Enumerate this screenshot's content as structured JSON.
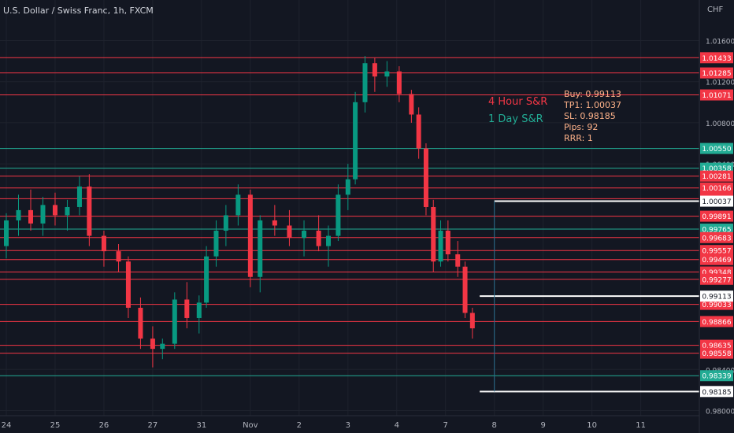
{
  "chart_data": {
    "type": "candlestick",
    "title": "U.S. Dollar / Swiss Franc, 1h, FXCM",
    "currency": "CHF",
    "ylim": [
      0.9795,
      1.0178
    ],
    "y_ticks": [
      1.016,
      1.012,
      1.008,
      1.004,
      0.984,
      0.98
    ],
    "x_ticks": [
      {
        "label": "24",
        "x": 0
      },
      {
        "label": "25",
        "x": 1
      },
      {
        "label": "26",
        "x": 2
      },
      {
        "label": "27",
        "x": 3
      },
      {
        "label": "31",
        "x": 4
      },
      {
        "label": "Nov",
        "x": 5
      },
      {
        "label": "2",
        "x": 6
      },
      {
        "label": "3",
        "x": 7
      },
      {
        "label": "4",
        "x": 8
      },
      {
        "label": "7",
        "x": 9
      },
      {
        "label": "8",
        "x": 10
      },
      {
        "label": "9",
        "x": 11
      },
      {
        "label": "10",
        "x": 12
      },
      {
        "label": "11",
        "x": 13
      }
    ],
    "xlim": [
      0,
      14.2
    ],
    "candles": [
      {
        "x": 0.0,
        "o": 0.996,
        "h": 0.9992,
        "l": 0.9948,
        "c": 0.9985
      },
      {
        "x": 0.25,
        "o": 0.9985,
        "h": 1.001,
        "l": 0.997,
        "c": 0.9995
      },
      {
        "x": 0.5,
        "o": 0.9995,
        "h": 1.0015,
        "l": 0.9975,
        "c": 0.9982
      },
      {
        "x": 0.75,
        "o": 0.9982,
        "h": 1.0008,
        "l": 0.997,
        "c": 1.0
      },
      {
        "x": 1.0,
        "o": 1.0,
        "h": 1.0012,
        "l": 0.998,
        "c": 0.999
      },
      {
        "x": 1.25,
        "o": 0.999,
        "h": 1.0005,
        "l": 0.9975,
        "c": 0.9998
      },
      {
        "x": 1.5,
        "o": 0.9998,
        "h": 1.0028,
        "l": 0.999,
        "c": 1.0018
      },
      {
        "x": 1.7,
        "o": 1.0018,
        "h": 1.003,
        "l": 0.996,
        "c": 0.997
      },
      {
        "x": 2.0,
        "o": 0.997,
        "h": 0.9975,
        "l": 0.994,
        "c": 0.9955
      },
      {
        "x": 2.3,
        "o": 0.9955,
        "h": 0.9962,
        "l": 0.9935,
        "c": 0.9945
      },
      {
        "x": 2.5,
        "o": 0.9945,
        "h": 0.995,
        "l": 0.989,
        "c": 0.99
      },
      {
        "x": 2.75,
        "o": 0.99,
        "h": 0.991,
        "l": 0.986,
        "c": 0.987
      },
      {
        "x": 3.0,
        "o": 0.987,
        "h": 0.9882,
        "l": 0.9842,
        "c": 0.986
      },
      {
        "x": 3.2,
        "o": 0.986,
        "h": 0.987,
        "l": 0.985,
        "c": 0.9865
      },
      {
        "x": 3.45,
        "o": 0.9865,
        "h": 0.9915,
        "l": 0.986,
        "c": 0.9908
      },
      {
        "x": 3.7,
        "o": 0.9908,
        "h": 0.9925,
        "l": 0.988,
        "c": 0.989
      },
      {
        "x": 3.95,
        "o": 0.989,
        "h": 0.9912,
        "l": 0.9875,
        "c": 0.9905
      },
      {
        "x": 4.1,
        "o": 0.9905,
        "h": 0.996,
        "l": 0.99,
        "c": 0.995
      },
      {
        "x": 4.3,
        "o": 0.995,
        "h": 0.9985,
        "l": 0.994,
        "c": 0.9975
      },
      {
        "x": 4.5,
        "o": 0.9975,
        "h": 1.0,
        "l": 0.996,
        "c": 0.999
      },
      {
        "x": 4.75,
        "o": 0.999,
        "h": 1.002,
        "l": 0.998,
        "c": 1.001
      },
      {
        "x": 5.0,
        "o": 1.001,
        "h": 1.0015,
        "l": 0.992,
        "c": 0.993
      },
      {
        "x": 5.2,
        "o": 0.993,
        "h": 0.999,
        "l": 0.9915,
        "c": 0.9985
      },
      {
        "x": 5.5,
        "o": 0.9985,
        "h": 1.0,
        "l": 0.997,
        "c": 0.998
      },
      {
        "x": 5.8,
        "o": 0.998,
        "h": 0.9995,
        "l": 0.996,
        "c": 0.9968
      },
      {
        "x": 6.1,
        "o": 0.9968,
        "h": 0.9985,
        "l": 0.995,
        "c": 0.9975
      },
      {
        "x": 6.4,
        "o": 0.9975,
        "h": 0.999,
        "l": 0.9955,
        "c": 0.996
      },
      {
        "x": 6.6,
        "o": 0.996,
        "h": 0.998,
        "l": 0.994,
        "c": 0.997
      },
      {
        "x": 6.8,
        "o": 0.997,
        "h": 1.002,
        "l": 0.9965,
        "c": 1.001
      },
      {
        "x": 7.0,
        "o": 1.001,
        "h": 1.004,
        "l": 0.9995,
        "c": 1.0025
      },
      {
        "x": 7.15,
        "o": 1.0025,
        "h": 1.011,
        "l": 1.002,
        "c": 1.01
      },
      {
        "x": 7.35,
        "o": 1.01,
        "h": 1.0145,
        "l": 1.009,
        "c": 1.0138
      },
      {
        "x": 7.55,
        "o": 1.0138,
        "h": 1.0143,
        "l": 1.011,
        "c": 1.0125
      },
      {
        "x": 7.8,
        "o": 1.0125,
        "h": 1.014,
        "l": 1.0115,
        "c": 1.013
      },
      {
        "x": 8.05,
        "o": 1.013,
        "h": 1.0135,
        "l": 1.01,
        "c": 1.0108
      },
      {
        "x": 8.3,
        "o": 1.0108,
        "h": 1.0112,
        "l": 1.008,
        "c": 1.0088
      },
      {
        "x": 8.45,
        "o": 1.0088,
        "h": 1.0095,
        "l": 1.0045,
        "c": 1.0055
      },
      {
        "x": 8.6,
        "o": 1.0055,
        "h": 1.006,
        "l": 0.999,
        "c": 0.9998
      },
      {
        "x": 8.75,
        "o": 0.9998,
        "h": 1.0005,
        "l": 0.9935,
        "c": 0.9945
      },
      {
        "x": 8.9,
        "o": 0.9945,
        "h": 0.9985,
        "l": 0.994,
        "c": 0.9975
      },
      {
        "x": 9.05,
        "o": 0.9975,
        "h": 0.9985,
        "l": 0.9945,
        "c": 0.9952
      },
      {
        "x": 9.25,
        "o": 0.9952,
        "h": 0.9965,
        "l": 0.993,
        "c": 0.994
      },
      {
        "x": 9.4,
        "o": 0.994,
        "h": 0.9945,
        "l": 0.989,
        "c": 0.9895
      },
      {
        "x": 9.55,
        "o": 0.9895,
        "h": 0.99,
        "l": 0.987,
        "c": 0.988
      }
    ],
    "horizontal_levels": [
      {
        "value": 1.01433,
        "label": "1.01433",
        "color": "#f23645"
      },
      {
        "value": 1.01285,
        "label": "1.01285",
        "color": "#f23645"
      },
      {
        "value": 1.01071,
        "label": "1.01071",
        "color": "#f23645"
      },
      {
        "value": 1.0055,
        "label": "1.00550",
        "color": "#22ab94"
      },
      {
        "value": 1.00358,
        "label": "1.00358",
        "color": "#22ab94"
      },
      {
        "value": 1.00281,
        "label": "1.00281",
        "color": "#f23645"
      },
      {
        "value": 1.00166,
        "label": "1.00166",
        "color": "#f23645"
      },
      {
        "value": 1.00061,
        "label": "1.00061",
        "color": "#f23645"
      },
      {
        "value": 0.99891,
        "label": "0.99891",
        "color": "#f23645"
      },
      {
        "value": 0.99765,
        "label": "0.99765",
        "color": "#22ab94"
      },
      {
        "value": 0.99683,
        "label": "0.99683",
        "color": "#f23645"
      },
      {
        "value": 0.99557,
        "label": "0.99557",
        "color": "#f23645"
      },
      {
        "value": 0.99469,
        "label": "0.99469",
        "color": "#f23645"
      },
      {
        "value": 0.99348,
        "label": "0.99348",
        "color": "#f23645"
      },
      {
        "value": 0.99277,
        "label": "0.99277",
        "color": "#f23645"
      },
      {
        "value": 0.99033,
        "label": "0.99033",
        "color": "#f23645"
      },
      {
        "value": 0.98866,
        "label": "0.98866",
        "color": "#f23645"
      },
      {
        "value": 0.98635,
        "label": "0.98635",
        "color": "#f23645"
      },
      {
        "value": 0.98558,
        "label": "0.98558",
        "color": "#f23645"
      },
      {
        "value": 0.98339,
        "label": "0.98339",
        "color": "#22ab94"
      }
    ],
    "trade_levels": [
      {
        "value": 1.00037,
        "label": "1.00037",
        "x_start": 10.0
      },
      {
        "value": 0.99113,
        "label": "0.99113",
        "x_start": 9.7
      },
      {
        "value": 0.98185,
        "label": "0.98185",
        "x_start": 9.7
      }
    ],
    "legend": [
      {
        "name": "4 Hour S&R",
        "color": "#f23645"
      },
      {
        "name": "1 Day S&R",
        "color": "#22ab94"
      }
    ],
    "trade_info": [
      "Buy: 0.99113",
      "TP1: 1.00037",
      "SL: 0.98185",
      "Pips: 92",
      "RRR: 1"
    ]
  }
}
